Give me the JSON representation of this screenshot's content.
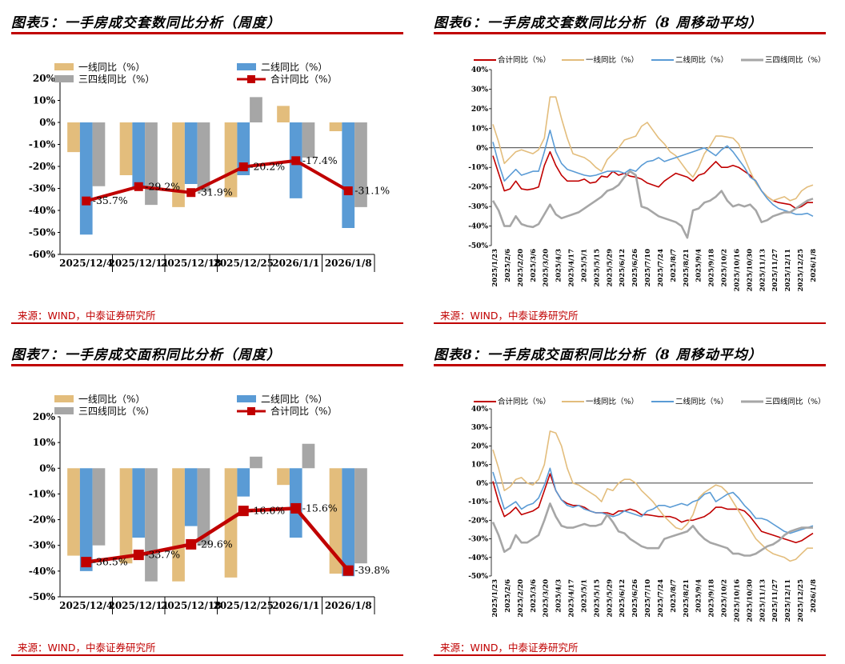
{
  "panels": [
    {
      "title": "图表5：一手房成交套数同比分析（周度）",
      "source": "来源：WIND，中泰证券研究所",
      "chart_data": {
        "type": "bar",
        "title": "一手房成交套数同比分析（周度）",
        "categories": [
          "2025/12/4",
          "2025/12/11",
          "2025/12/18",
          "2025/12/25",
          "2026/1/1",
          "2026/1/8"
        ],
        "ylim": [
          -60,
          20
        ],
        "yticks": [
          -60,
          -50,
          -40,
          -30,
          -20,
          -10,
          0,
          10,
          20
        ],
        "ytick_labels": [
          "-60%",
          "-50%",
          "-40%",
          "-30%",
          "-20%",
          "-10%",
          "0%",
          "10%",
          "20%"
        ],
        "series": [
          {
            "name": "一线同比（%）",
            "kind": "bar",
            "color": "#e3bd7c",
            "values": [
              -13.5,
              -24,
              -38.5,
              -34,
              7.5,
              -4
            ]
          },
          {
            "name": "二线同比（%）",
            "kind": "bar",
            "color": "#5a9bd5",
            "values": [
              -51,
              -30,
              -28,
              -24,
              -34.5,
              -48
            ]
          },
          {
            "name": "三四线同比（%）",
            "kind": "bar",
            "color": "#a6a6a6",
            "values": [
              -29,
              -37.5,
              -31.5,
              11.5,
              -16,
              -38.5
            ]
          },
          {
            "name": "合计同比（%）",
            "kind": "line",
            "color": "#c00000",
            "values": [
              -35.7,
              -29.2,
              -31.9,
              -20.2,
              -17.4,
              -31.1
            ],
            "labels": [
              "-35.7%",
              "-29.2%",
              "-31.9%",
              "-20.2%",
              "-17.4%",
              "-31.1%"
            ]
          }
        ]
      }
    },
    {
      "title": "图表6：一手房成交套数同比分析（8 周移动平均）",
      "source": "来源：WIND，中泰证券研究所",
      "chart_data": {
        "type": "line",
        "title": "一手房成交套数同比分析（8 周移动平均）",
        "x_labels": [
          "2025/1/23",
          "2025/2/6",
          "2025/2/20",
          "2025/3/6",
          "2025/3/20",
          "2025/4/3",
          "2025/4/17",
          "2025/5/1",
          "2025/5/15",
          "2025/5/29",
          "2025/6/12",
          "2025/6/26",
          "2025/7/10",
          "2025/7/24",
          "2025/8/7",
          "2025/8/21",
          "2025/9/4",
          "2025/9/18",
          "2025/10/2",
          "2025/10/16",
          "2025/10/30",
          "2025/11/13",
          "2025/11/27",
          "2025/12/11",
          "2025/12/25",
          "2026/1/8"
        ],
        "ylim": [
          -50,
          40
        ],
        "yticks": [
          -50,
          -40,
          -30,
          -20,
          -10,
          0,
          10,
          20,
          30,
          40
        ],
        "ytick_labels": [
          "-50%",
          "-40%",
          "-30%",
          "-20%",
          "-10%",
          "0%",
          "10%",
          "20%",
          "30%",
          "40%"
        ],
        "series": [
          {
            "name": "合计同比（%）",
            "color": "#c00000",
            "values": [
              -4,
              -13,
              -22,
              -21,
              -17,
              -21,
              -21.5,
              -21,
              -20,
              -9,
              -2,
              -9,
              -14,
              -17,
              -17,
              -17,
              -16,
              -18,
              -17.5,
              -14.5,
              -15,
              -12,
              -14,
              -13,
              -14.5,
              -15,
              -16,
              -18,
              -19,
              -20,
              -17,
              -15,
              -13,
              -14,
              -15,
              -17,
              -14,
              -13,
              -10,
              -7,
              -10,
              -10,
              -9,
              -10,
              -12,
              -14,
              -17,
              -22,
              -25,
              -27,
              -28,
              -28.5,
              -29,
              -31,
              -30,
              -28,
              -28
            ]
          },
          {
            "name": "一线同比（%）",
            "color": "#e3bd7c",
            "values": [
              12,
              3,
              -8,
              -5,
              -2,
              -1,
              -2,
              -3,
              -1,
              5,
              26,
              26,
              15,
              5,
              -3,
              -4,
              -5,
              -7,
              -10,
              -12,
              -6,
              -3,
              0,
              4,
              5,
              6,
              11,
              13,
              9,
              5,
              2,
              -2,
              -4,
              -8,
              -12,
              -15,
              -10,
              -3,
              1,
              6,
              6,
              5.5,
              5,
              2,
              -5,
              -12,
              -18,
              -22,
              -25,
              -27,
              -26,
              -25,
              -27,
              -26,
              -22,
              -20,
              -19
            ]
          },
          {
            "name": "二线同比（%）",
            "color": "#5a9bd5",
            "values": [
              3,
              -8,
              -17,
              -14,
              -11,
              -14,
              -13,
              -12,
              -12,
              -2,
              9,
              -2,
              -8,
              -11,
              -12,
              -13,
              -14,
              -14.5,
              -14,
              -13,
              -12,
              -12,
              -12,
              -13,
              -11,
              -12,
              -9,
              -7,
              -6.5,
              -5,
              -7,
              -6,
              -5,
              -4,
              -3,
              -2,
              -1,
              0,
              -2,
              -4,
              -1,
              1,
              -2,
              -6,
              -10,
              -15,
              -17,
              -22,
              -26,
              -29,
              -31,
              -32,
              -33,
              -34,
              -34,
              -33.5,
              -35
            ]
          },
          {
            "name": "三四线同比（%）",
            "color": "#a6a6a6",
            "values": [
              -27,
              -32,
              -40,
              -40,
              -35,
              -39,
              -40,
              -40.5,
              -39,
              -34,
              -29,
              -34,
              -36,
              -35,
              -34,
              -33,
              -31,
              -29,
              -27,
              -25,
              -22,
              -21,
              -19,
              -15,
              -12,
              -14,
              -30,
              -31,
              -33,
              -35,
              -36,
              -37,
              -38,
              -40,
              -46,
              -32,
              -31,
              -28,
              -27,
              -25,
              -22,
              -27,
              -30,
              -29,
              -30,
              -29,
              -32,
              -38,
              -37,
              -35,
              -34,
              -33,
              -33,
              -31,
              -29,
              -27,
              -26
            ]
          }
        ]
      }
    },
    {
      "title": "图表7：一手房成交面积同比分析（周度）",
      "source": "来源：WIND，中泰证券研究所",
      "chart_data": {
        "type": "bar",
        "title": "一手房成交面积同比分析（周度）",
        "categories": [
          "2025/12/4",
          "2025/12/11",
          "2025/12/18",
          "2025/12/25",
          "2026/1/1",
          "2026/1/8"
        ],
        "ylim": [
          -50,
          20
        ],
        "yticks": [
          -50,
          -40,
          -30,
          -20,
          -10,
          0,
          10,
          20
        ],
        "ytick_labels": [
          "-50%",
          "-40%",
          "-30%",
          "-20%",
          "-10%",
          "0%",
          "10%",
          "20%"
        ],
        "series": [
          {
            "name": "一线同比（%）",
            "kind": "bar",
            "color": "#e3bd7c",
            "values": [
              -34,
              -37,
              -44,
              -42.5,
              -6.5,
              -41
            ]
          },
          {
            "name": "二线同比（%）",
            "kind": "bar",
            "color": "#5a9bd5",
            "values": [
              -40,
              -27,
              -22.5,
              -11,
              -27,
              -42
            ]
          },
          {
            "name": "三四线同比（%）",
            "kind": "bar",
            "color": "#a6a6a6",
            "values": [
              -30,
              -44,
              -30,
              4.5,
              9.5,
              -37
            ]
          },
          {
            "name": "合计同比（%）",
            "kind": "line",
            "color": "#c00000",
            "values": [
              -36.5,
              -33.7,
              -29.6,
              -16.6,
              -15.6,
              -39.8
            ],
            "labels": [
              "-36.5%",
              "-33.7%",
              "-29.6%",
              "-16.6%",
              "-15.6%",
              "-39.8%"
            ]
          }
        ]
      }
    },
    {
      "title": "图表8：一手房成交面积同比分析（8 周移动平均）",
      "source": "来源：WIND，中泰证券研究所",
      "chart_data": {
        "type": "line",
        "title": "一手房成交面积同比分析（8 周移动平均）",
        "x_labels": [
          "2025/1/23",
          "2025/2/6",
          "2025/2/20",
          "2025/3/6",
          "2025/3/20",
          "2025/4/3",
          "2025/4/17",
          "2025/5/1",
          "2025/5/15",
          "2025/5/29",
          "2025/6/12",
          "2025/6/26",
          "2025/7/10",
          "2025/7/24",
          "2025/8/7",
          "2025/8/21",
          "2025/9/4",
          "2025/9/18",
          "2025/10/2",
          "2025/10/16",
          "2025/10/30",
          "2025/11/13",
          "2025/11/27",
          "2025/12/11",
          "2025/12/25",
          "2026/1/8"
        ],
        "ylim": [
          -50,
          40
        ],
        "yticks": [
          -50,
          -40,
          -30,
          -20,
          -10,
          0,
          10,
          20,
          30,
          40
        ],
        "ytick_labels": [
          "-50%",
          "-40%",
          "-30%",
          "-20%",
          "-10%",
          "0%",
          "10%",
          "20%",
          "30%",
          "40%"
        ],
        "series": [
          {
            "name": "合计同比（%）",
            "color": "#c00000",
            "values": [
              1,
              -10,
              -18,
              -16,
              -13,
              -17,
              -16,
              -15,
              -13,
              -4,
              5,
              -4,
              -9,
              -11,
              -12,
              -12,
              -13,
              -15,
              -16,
              -16,
              -16,
              -17,
              -15,
              -15,
              -14,
              -15,
              -17,
              -17,
              -17.5,
              -18,
              -18,
              -18,
              -19,
              -21,
              -20,
              -20,
              -19,
              -18,
              -16,
              -13,
              -13,
              -14,
              -14,
              -14,
              -15,
              -18,
              -22,
              -26,
              -27,
              -28,
              -29,
              -30,
              -31,
              -32,
              -31,
              -29,
              -27
            ]
          },
          {
            "name": "一线同比（%）",
            "color": "#e3bd7c",
            "values": [
              18,
              8,
              -4,
              -2,
              2,
              3,
              0,
              -1,
              2,
              10,
              28,
              27,
              20,
              8,
              0,
              -1,
              -3,
              -5,
              -7,
              -10,
              -3,
              -4,
              0,
              2,
              2,
              0,
              -4,
              -7,
              -10,
              -14,
              -18,
              -21,
              -24,
              -25,
              -22,
              -17,
              -8,
              -5,
              -3,
              -1,
              -2,
              -5,
              -10,
              -15,
              -20,
              -25,
              -30,
              -33,
              -36,
              -38,
              -39,
              -40,
              -42,
              -41,
              -38,
              -35,
              -35
            ]
          },
          {
            "name": "二线同比（%）",
            "color": "#5a9bd5",
            "values": [
              6,
              -4,
              -14,
              -12,
              -10,
              -14,
              -12,
              -11,
              -8,
              -1,
              8,
              -4,
              -9,
              -12,
              -13,
              -12,
              -14,
              -15,
              -16,
              -16,
              -17,
              -18,
              -17,
              -15,
              -16,
              -17,
              -18,
              -15,
              -14,
              -12,
              -12,
              -13,
              -12,
              -11,
              -12,
              -10,
              -9,
              -6,
              -5,
              -10,
              -8,
              -6,
              -5,
              -8,
              -12,
              -15,
              -19,
              -19,
              -20,
              -22,
              -24,
              -26,
              -27,
              -26,
              -25,
              -24,
              -23
            ]
          },
          {
            "name": "三四线同比（%）",
            "color": "#a6a6a6",
            "values": [
              -21,
              -28,
              -37,
              -35,
              -28,
              -32,
              -32,
              -30,
              -28,
              -20,
              -11,
              -18,
              -23,
              -24,
              -24,
              -23,
              -22,
              -23,
              -23,
              -22,
              -17,
              -21,
              -26,
              -27,
              -30,
              -32,
              -34,
              -35,
              -35,
              -35,
              -30,
              -29,
              -28,
              -27,
              -26,
              -23,
              -27,
              -30,
              -32,
              -33,
              -34,
              -35,
              -38,
              -38,
              -39,
              -39,
              -38,
              -36,
              -34,
              -33,
              -31,
              -28,
              -26,
              -25,
              -24,
              -24,
              -24
            ]
          }
        ]
      }
    }
  ]
}
